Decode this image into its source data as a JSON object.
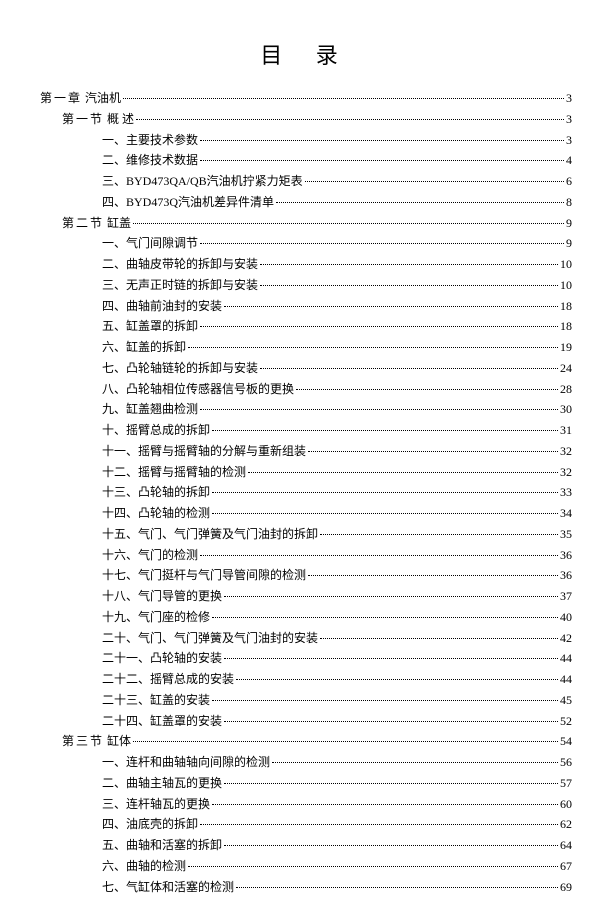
{
  "title": "目  录",
  "entries": [
    {
      "level": 0,
      "prefix": "第一章",
      "spacer": "    ",
      "label": "汽油机",
      "page": 3
    },
    {
      "level": 1,
      "prefix": "第一节",
      "spacer": "    ",
      "label": "概    述",
      "page": 3
    },
    {
      "level": 2,
      "prefix": "一、",
      "spacer": "",
      "label": "主要技术参数",
      "page": 3
    },
    {
      "level": 2,
      "prefix": "二、",
      "spacer": "",
      "label": "维修技术数据",
      "page": 4
    },
    {
      "level": 2,
      "prefix": "三、",
      "spacer": "",
      "label": "BYD473QA/QB汽油机拧紧力矩表",
      "page": 6
    },
    {
      "level": 2,
      "prefix": "四、",
      "spacer": "",
      "label": "BYD473Q汽油机差异件清单",
      "page": 8
    },
    {
      "level": 1,
      "prefix": "第二节",
      "spacer": "    ",
      "label": "缸盖",
      "page": 9
    },
    {
      "level": 2,
      "prefix": "一、",
      "spacer": "",
      "label": "气门间隙调节",
      "page": 9
    },
    {
      "level": 2,
      "prefix": "二、",
      "spacer": "",
      "label": "曲轴皮带轮的拆卸与安装",
      "page": 10
    },
    {
      "level": 2,
      "prefix": "三、",
      "spacer": "",
      "label": "无声正时链的拆卸与安装",
      "page": 10
    },
    {
      "level": 2,
      "prefix": "四、",
      "spacer": "",
      "label": "曲轴前油封的安装",
      "page": 18
    },
    {
      "level": 2,
      "prefix": "五、",
      "spacer": "",
      "label": "缸盖罩的拆卸",
      "page": 18
    },
    {
      "level": 2,
      "prefix": "六、",
      "spacer": "",
      "label": "缸盖的拆卸",
      "page": 19
    },
    {
      "level": 2,
      "prefix": "七、",
      "spacer": "",
      "label": "凸轮轴链轮的拆卸与安装",
      "page": 24
    },
    {
      "level": 2,
      "prefix": "八、",
      "spacer": "",
      "label": "凸轮轴相位传感器信号板的更换",
      "page": 28
    },
    {
      "level": 2,
      "prefix": "九、",
      "spacer": "",
      "label": "缸盖翘曲检测",
      "page": 30
    },
    {
      "level": 2,
      "prefix": "十、",
      "spacer": "",
      "label": "摇臂总成的拆卸",
      "page": 31
    },
    {
      "level": 2,
      "prefix": "十一、",
      "spacer": "",
      "label": "摇臂与摇臂轴的分解与重新组装",
      "page": 32
    },
    {
      "level": 2,
      "prefix": "十二、",
      "spacer": "",
      "label": "摇臂与摇臂轴的检测",
      "page": 32
    },
    {
      "level": 2,
      "prefix": "十三、",
      "spacer": "",
      "label": "凸轮轴的拆卸",
      "page": 33
    },
    {
      "level": 2,
      "prefix": "十四、",
      "spacer": "",
      "label": "凸轮轴的检测",
      "page": 34
    },
    {
      "level": 2,
      "prefix": "十五、",
      "spacer": "",
      "label": "气门、气门弹簧及气门油封的拆卸",
      "page": 35
    },
    {
      "level": 2,
      "prefix": "十六、",
      "spacer": "",
      "label": "气门的检测",
      "page": 36
    },
    {
      "level": 2,
      "prefix": "十七、",
      "spacer": "",
      "label": "气门挺杆与气门导管间隙的检测",
      "page": 36
    },
    {
      "level": 2,
      "prefix": "十八、",
      "spacer": "",
      "label": "气门导管的更换",
      "page": 37
    },
    {
      "level": 2,
      "prefix": "十九、",
      "spacer": "",
      "label": "气门座的检修",
      "page": 40
    },
    {
      "level": 2,
      "prefix": "二十、",
      "spacer": "",
      "label": "气门、气门弹簧及气门油封的安装",
      "page": 42
    },
    {
      "level": 2,
      "prefix": "二十一、",
      "spacer": "",
      "label": "凸轮轴的安装",
      "page": 44
    },
    {
      "level": 2,
      "prefix": "二十二、",
      "spacer": "",
      "label": "摇臂总成的安装",
      "page": 44
    },
    {
      "level": 2,
      "prefix": "二十三、",
      "spacer": "",
      "label": "缸盖的安装",
      "page": 45
    },
    {
      "level": 2,
      "prefix": "二十四、",
      "spacer": "",
      "label": "缸盖罩的安装",
      "page": 52
    },
    {
      "level": 1,
      "prefix": "第三节",
      "spacer": "    ",
      "label": "缸体",
      "page": 54
    },
    {
      "level": 2,
      "prefix": "一、",
      "spacer": "",
      "label": "连杆和曲轴轴向间隙的检测",
      "page": 56
    },
    {
      "level": 2,
      "prefix": "二、",
      "spacer": "",
      "label": "曲轴主轴瓦的更换",
      "page": 57
    },
    {
      "level": 2,
      "prefix": "三、",
      "spacer": "",
      "label": "连杆轴瓦的更换",
      "page": 60
    },
    {
      "level": 2,
      "prefix": "四、",
      "spacer": "",
      "label": "油底壳的拆卸",
      "page": 62
    },
    {
      "level": 2,
      "prefix": "五、",
      "spacer": "",
      "label": "曲轴和活塞的拆卸",
      "page": 64
    },
    {
      "level": 2,
      "prefix": "六、",
      "spacer": "",
      "label": "曲轴的检测",
      "page": 67
    },
    {
      "level": 2,
      "prefix": "七、",
      "spacer": "",
      "label": "气缸体和活塞的检测",
      "page": 69
    }
  ]
}
